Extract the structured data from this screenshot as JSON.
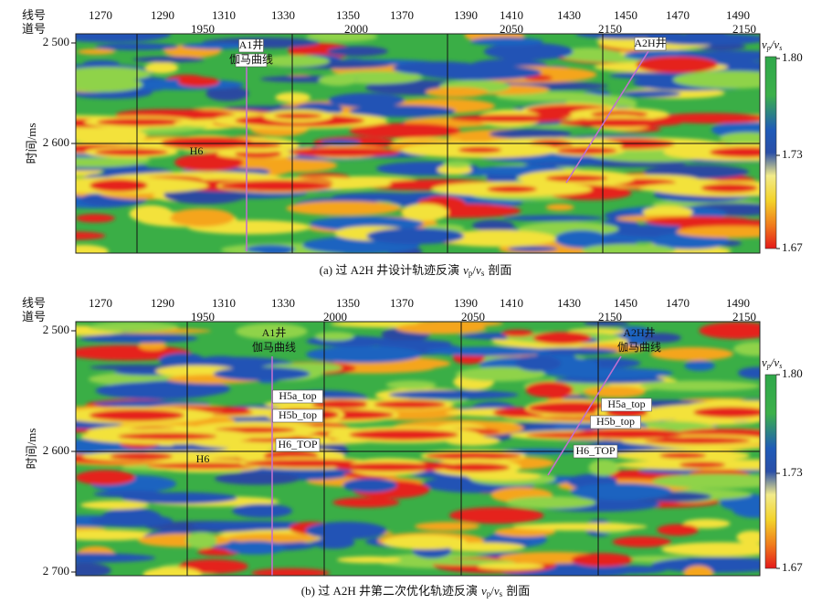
{
  "panels": [
    {
      "row_labels": [
        "线号",
        "道号"
      ],
      "line_numbers": [
        "1270",
        "1290",
        "1310",
        "1330",
        "1350",
        "1370",
        "1390",
        "1410",
        "1430",
        "1450",
        "1470",
        "1490"
      ],
      "trace_numbers": [
        "1950",
        "2000",
        "2050",
        "2150",
        "2150"
      ],
      "y_axis_label": "时间/ms",
      "y_ticks": [
        "2 500",
        "2 600"
      ],
      "colorbar": {
        "title": {
          "v1": "v",
          "sub1": "p",
          "slash": "/",
          "v2": "v",
          "sub2": "s"
        },
        "ticks": [
          "1.80",
          "1.73",
          "1.67"
        ]
      },
      "annotations": [
        "A1井",
        "伽马曲线",
        "A2H井",
        "H6"
      ],
      "caption": {
        "prefix": "(a) 过 A2H 井设计轨迹反演",
        "v1": "v",
        "sub1": "p",
        "slash": "/",
        "v2": "v",
        "sub2": "s",
        "suffix": "剖面"
      }
    },
    {
      "row_labels": [
        "线号",
        "道号"
      ],
      "line_numbers": [
        "1270",
        "1290",
        "1310",
        "1330",
        "1350",
        "1370",
        "1390",
        "1410",
        "1430",
        "1450",
        "1470",
        "1490"
      ],
      "trace_numbers": [
        "1950",
        "2000",
        "2050",
        "2150",
        "2150"
      ],
      "y_axis_label": "时间/ms",
      "y_ticks": [
        "2 500",
        "2 600",
        "2 700"
      ],
      "colorbar": {
        "title": {
          "v1": "v",
          "sub1": "p",
          "slash": "/",
          "v2": "v",
          "sub2": "s"
        },
        "ticks": [
          "1.80",
          "1.73",
          "1.67"
        ]
      },
      "annotations": [
        "A1井",
        "伽马曲线",
        "A2H井",
        "伽马曲线",
        "H5a_top",
        "H5b_top",
        "H6_TOP",
        "H5a_top",
        "H5b_top",
        "H6_TOP",
        "H6"
      ],
      "caption": {
        "prefix": "(b) 过 A2H 井第二次优化轨迹反演",
        "v1": "v",
        "sub1": "p",
        "slash": "/",
        "v2": "v",
        "sub2": "s",
        "suffix": "剖面"
      }
    }
  ]
}
